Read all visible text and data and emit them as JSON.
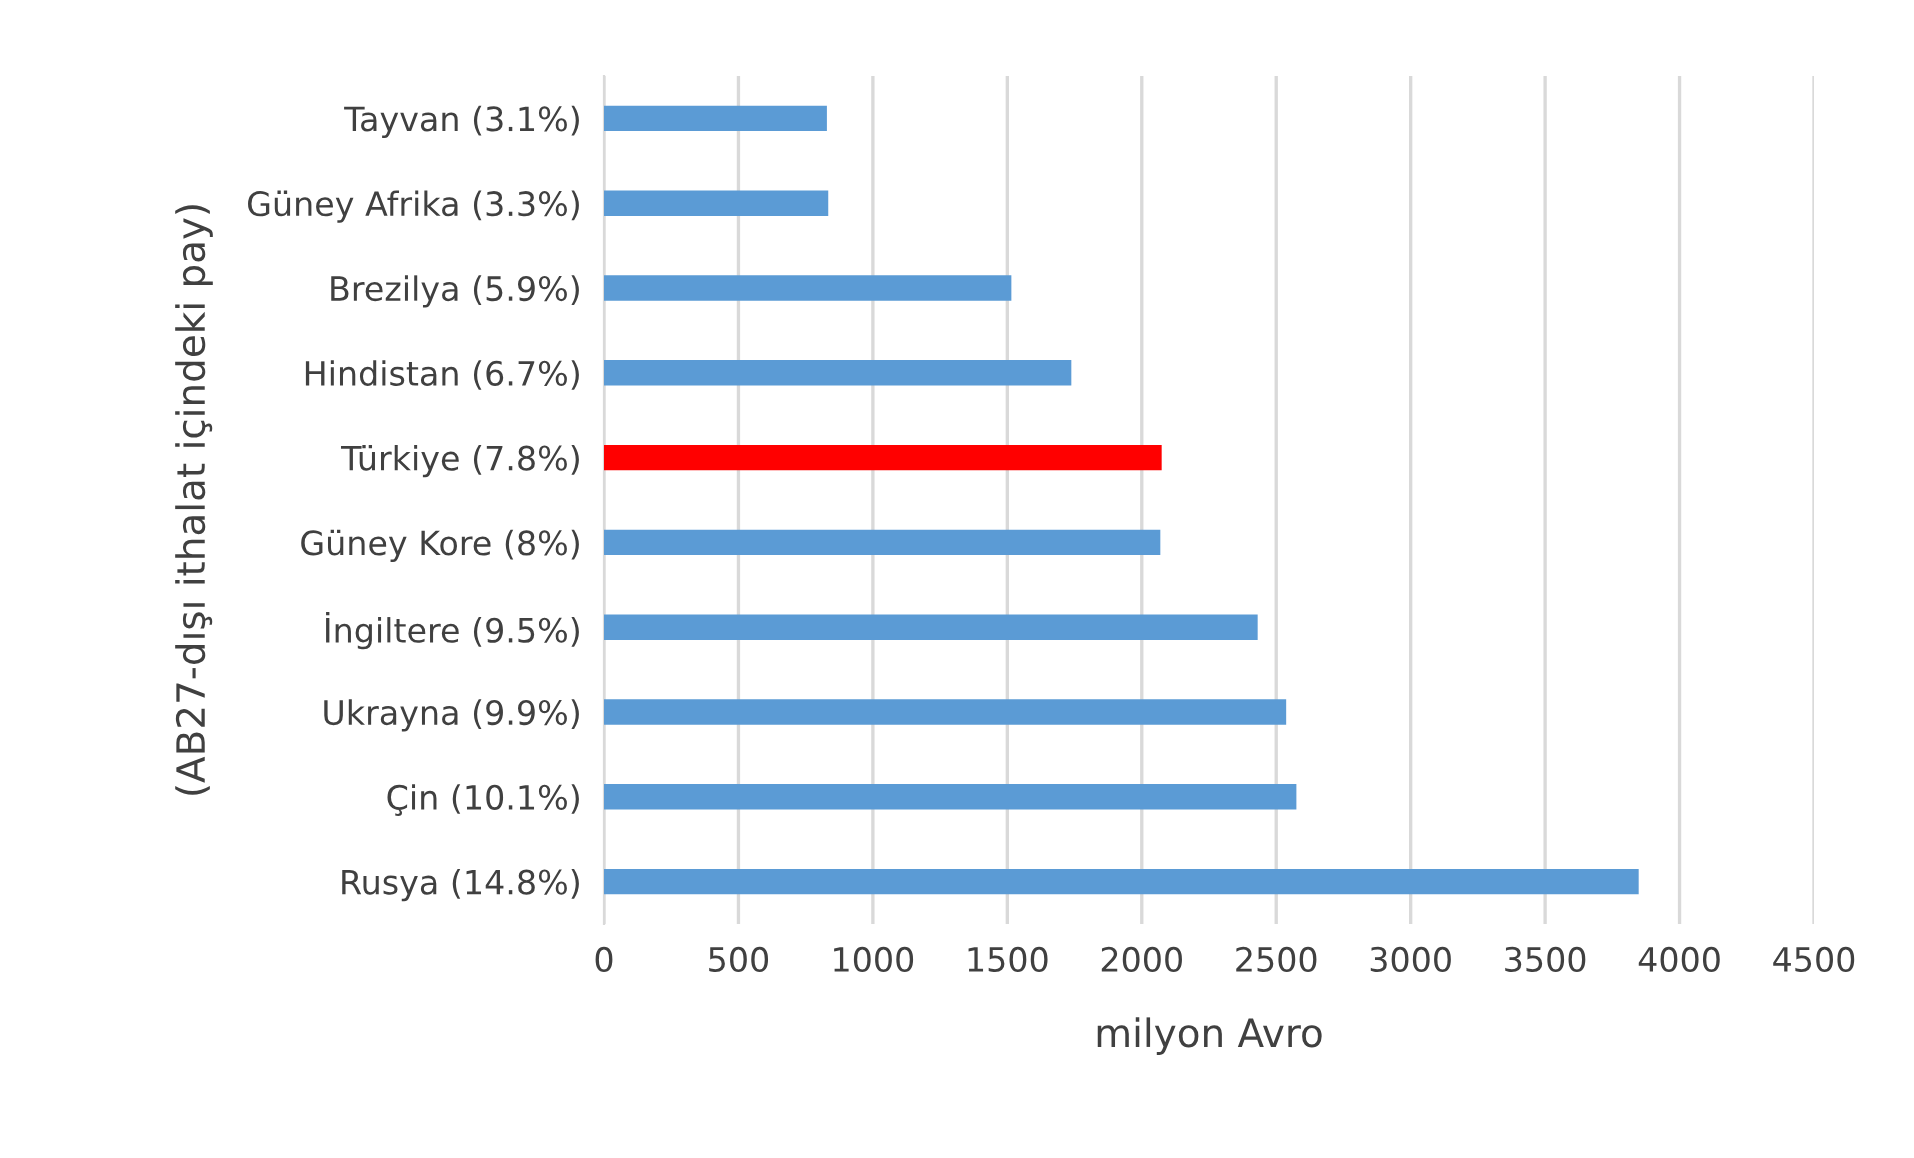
{
  "chart_data": {
    "type": "bar",
    "orientation": "horizontal",
    "xlabel": "milyon Avro",
    "ylabel": "(AB27-dışı ithalat içindeki pay)",
    "categories": [
      "Tayvan (3.1%)",
      "Güney Afrika (3.3%)",
      "Brezilya (5.9%)",
      "Hindistan (6.7%)",
      "Türkiye (7.8%)",
      "Güney Kore (8%)",
      "İngiltere (9.5%)",
      "Ukrayna (9.9%)",
      "Çin (10.1%)",
      "Rusya (14.8%)"
    ],
    "values": [
      829,
      834,
      1515,
      1738,
      2074,
      2069,
      2431,
      2537,
      2575,
      3848
    ],
    "colors": [
      "#5b9bd5",
      "#5b9bd5",
      "#5b9bd5",
      "#5b9bd5",
      "#ff0000",
      "#5b9bd5",
      "#5b9bd5",
      "#5b9bd5",
      "#5b9bd5",
      "#5b9bd5"
    ],
    "xlim": [
      0,
      4500
    ],
    "xticks": [
      0,
      500,
      1000,
      1500,
      2000,
      2500,
      3000,
      3500,
      4000,
      4500
    ],
    "grid": "x",
    "legend": false
  }
}
